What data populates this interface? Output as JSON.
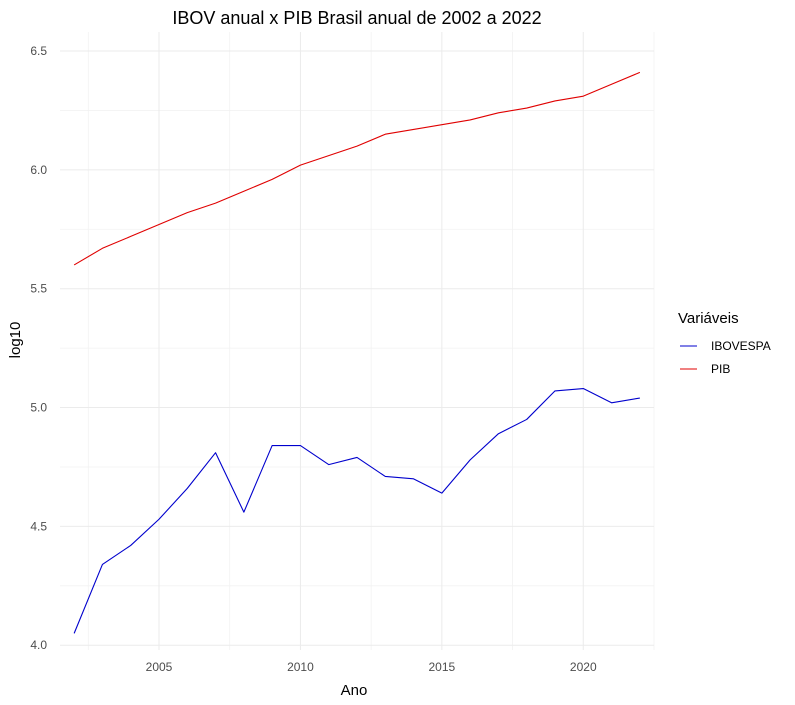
{
  "chart_data": {
    "type": "line",
    "title": "IBOV anual x PIB Brasil anual de 2002 a 2022",
    "xlabel": "Ano",
    "ylabel": "log10",
    "xlim": [
      2001.5,
      2022.5
    ],
    "ylim": [
      3.98,
      6.58
    ],
    "x_ticks": [
      2005,
      2010,
      2015,
      2020
    ],
    "x_tick_labels": [
      "2005",
      "2010",
      "2015",
      "2020"
    ],
    "y_ticks": [
      4.0,
      4.5,
      5.0,
      5.5,
      6.0,
      6.5
    ],
    "y_tick_labels": [
      "4.0",
      "4.5",
      "5.0",
      "5.5",
      "6.0",
      "6.5"
    ],
    "grid": true,
    "legend": {
      "title": "Variáveis",
      "position": "right"
    },
    "x": [
      2002,
      2003,
      2004,
      2005,
      2006,
      2007,
      2008,
      2009,
      2010,
      2011,
      2012,
      2013,
      2014,
      2015,
      2016,
      2017,
      2018,
      2019,
      2020,
      2021,
      2022
    ],
    "series": [
      {
        "name": "IBOVESPA",
        "color": "#0000cd",
        "values": [
          4.05,
          4.34,
          4.42,
          4.53,
          4.66,
          4.81,
          4.56,
          4.84,
          4.84,
          4.76,
          4.79,
          4.71,
          4.7,
          4.64,
          4.78,
          4.89,
          4.95,
          5.07,
          5.08,
          5.02,
          5.04
        ]
      },
      {
        "name": "PIB",
        "color": "#e00000",
        "values": [
          5.6,
          5.67,
          5.72,
          5.77,
          5.82,
          5.86,
          5.91,
          5.96,
          6.02,
          6.06,
          6.1,
          6.15,
          6.17,
          6.19,
          6.21,
          6.24,
          6.26,
          6.29,
          6.31,
          6.36,
          6.41
        ]
      }
    ]
  }
}
